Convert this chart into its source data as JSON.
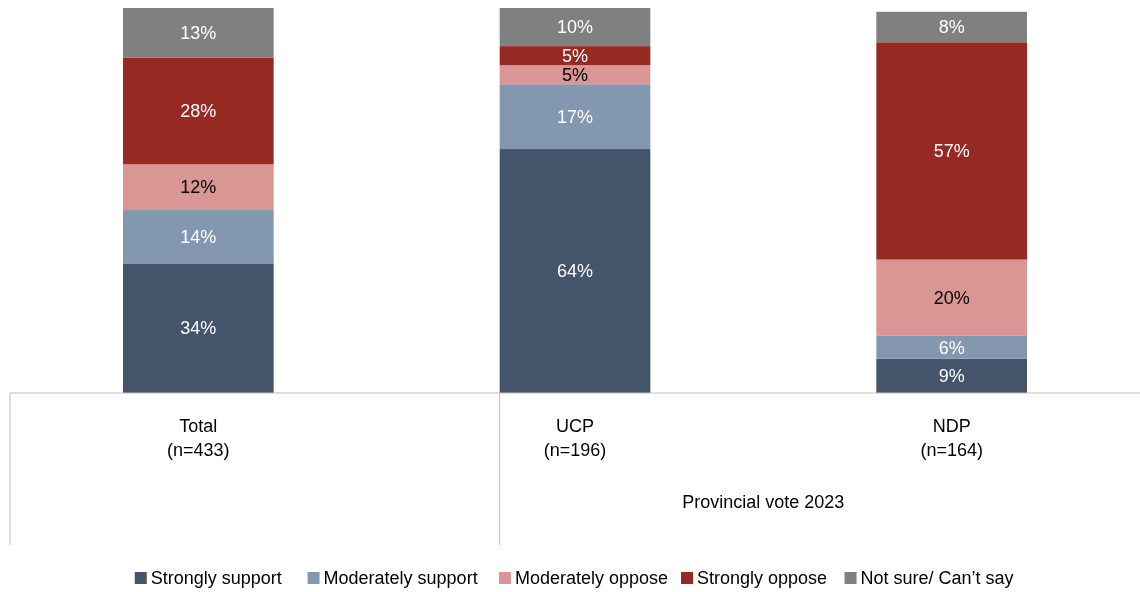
{
  "chart_data": {
    "type": "bar",
    "stacked": true,
    "categories": [
      "Total\n(n=433)",
      "UCP\n(n=196)",
      "NDP\n(n=164)"
    ],
    "tick_labels": "x",
    "legend": "bottom",
    "series": [
      {
        "name": "Strongly support",
        "color": "#44546a",
        "values": [
          34,
          64,
          9
        ],
        "value_labels": [
          "34%",
          "64%",
          "9%"
        ]
      },
      {
        "name": "Moderately support",
        "color": "#8497b0",
        "values": [
          14,
          17,
          6
        ],
        "value_labels": [
          "14%",
          "17%",
          "6%"
        ]
      },
      {
        "name": "Moderately oppose",
        "color": "#d99694",
        "values": [
          12,
          5,
          20
        ],
        "value_labels": [
          "12%",
          "5%",
          "20%"
        ]
      },
      {
        "name": "Strongly oppose",
        "color": "#962922",
        "values": [
          28,
          5,
          57
        ],
        "value_labels": [
          "28%",
          "5%",
          "57%"
        ]
      },
      {
        "name": "Not sure/ Can’t say",
        "color": "#808080",
        "values": [
          13,
          10,
          8
        ],
        "value_labels": [
          "13%",
          "10%",
          "8%"
        ]
      }
    ],
    "annotations": [
      "Provincial vote 2023"
    ]
  }
}
